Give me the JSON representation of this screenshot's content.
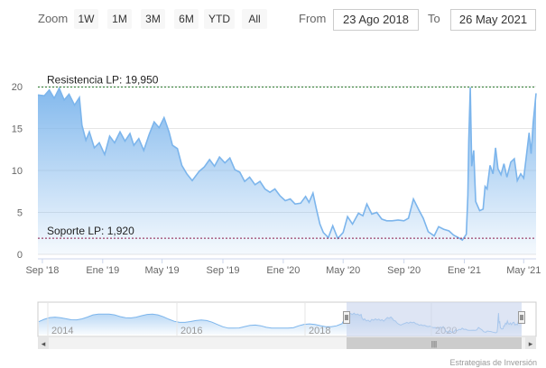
{
  "toolbar": {
    "zoom_label": "Zoom",
    "buttons": [
      "1W",
      "1M",
      "3M",
      "6M",
      "YTD",
      "All"
    ],
    "from_label": "From",
    "from_value": "23 Ago 2018",
    "to_label": "To",
    "to_value": "26 May 2021"
  },
  "colors": {
    "series_line": "#7cb5ec",
    "resistance_line": "#2e7d32",
    "support_line": "#8b1a4a",
    "navigator_mask": "#c8d3ec"
  },
  "chart_data": {
    "type": "area",
    "title": "",
    "xlabel": "",
    "ylabel": "",
    "ylim": [
      0,
      20
    ],
    "yticks": [
      0,
      5,
      10,
      15,
      20
    ],
    "x_range": [
      "2018-08-23",
      "2021-05-26"
    ],
    "xticks": [
      {
        "date": "2018-09-01",
        "label": "Sep '18"
      },
      {
        "date": "2019-01-01",
        "label": "Ene '19"
      },
      {
        "date": "2019-05-01",
        "label": "May '19"
      },
      {
        "date": "2019-09-01",
        "label": "Sep '19"
      },
      {
        "date": "2020-01-01",
        "label": "Ene '20"
      },
      {
        "date": "2020-05-01",
        "label": "May '20"
      },
      {
        "date": "2020-09-01",
        "label": "Sep '20"
      },
      {
        "date": "2021-01-01",
        "label": "Ene '21"
      },
      {
        "date": "2021-05-01",
        "label": "May '21"
      }
    ],
    "series": [
      {
        "points": [
          [
            "2018-08-23",
            19.0
          ],
          [
            "2018-09-05",
            18.9
          ],
          [
            "2018-09-15",
            19.6
          ],
          [
            "2018-09-25",
            18.6
          ],
          [
            "2018-10-05",
            19.8
          ],
          [
            "2018-10-15",
            18.4
          ],
          [
            "2018-10-25",
            19.1
          ],
          [
            "2018-11-05",
            17.8
          ],
          [
            "2018-11-15",
            18.7
          ],
          [
            "2018-11-20",
            15.4
          ],
          [
            "2018-11-28",
            13.6
          ],
          [
            "2018-12-05",
            14.6
          ],
          [
            "2018-12-15",
            12.7
          ],
          [
            "2018-12-25",
            13.3
          ],
          [
            "2019-01-05",
            11.9
          ],
          [
            "2019-01-15",
            14.1
          ],
          [
            "2019-01-25",
            13.3
          ],
          [
            "2019-02-05",
            14.6
          ],
          [
            "2019-02-15",
            13.5
          ],
          [
            "2019-02-25",
            14.4
          ],
          [
            "2019-03-05",
            13.0
          ],
          [
            "2019-03-15",
            13.8
          ],
          [
            "2019-03-25",
            12.4
          ],
          [
            "2019-04-05",
            14.3
          ],
          [
            "2019-04-15",
            15.8
          ],
          [
            "2019-04-25",
            15.1
          ],
          [
            "2019-05-05",
            16.3
          ],
          [
            "2019-05-15",
            14.6
          ],
          [
            "2019-05-22",
            13.0
          ],
          [
            "2019-06-01",
            12.6
          ],
          [
            "2019-06-10",
            10.6
          ],
          [
            "2019-06-20",
            9.6
          ],
          [
            "2019-07-01",
            8.8
          ],
          [
            "2019-07-15",
            9.9
          ],
          [
            "2019-07-25",
            10.4
          ],
          [
            "2019-08-05",
            11.3
          ],
          [
            "2019-08-15",
            10.5
          ],
          [
            "2019-08-25",
            11.6
          ],
          [
            "2019-09-05",
            10.9
          ],
          [
            "2019-09-15",
            11.5
          ],
          [
            "2019-09-25",
            10.1
          ],
          [
            "2019-10-05",
            9.8
          ],
          [
            "2019-10-15",
            8.7
          ],
          [
            "2019-10-25",
            9.2
          ],
          [
            "2019-11-05",
            8.3
          ],
          [
            "2019-11-15",
            8.7
          ],
          [
            "2019-11-25",
            7.8
          ],
          [
            "2019-12-05",
            7.4
          ],
          [
            "2019-12-15",
            7.8
          ],
          [
            "2019-12-25",
            7.0
          ],
          [
            "2020-01-05",
            6.4
          ],
          [
            "2020-01-15",
            6.6
          ],
          [
            "2020-01-25",
            6.0
          ],
          [
            "2020-02-05",
            6.1
          ],
          [
            "2020-02-15",
            6.9
          ],
          [
            "2020-02-22",
            6.2
          ],
          [
            "2020-03-01",
            7.3
          ],
          [
            "2020-03-08",
            5.4
          ],
          [
            "2020-03-15",
            3.6
          ],
          [
            "2020-03-22",
            2.6
          ],
          [
            "2020-04-01",
            2.0
          ],
          [
            "2020-04-10",
            3.4
          ],
          [
            "2020-04-20",
            1.9
          ],
          [
            "2020-05-01",
            2.6
          ],
          [
            "2020-05-10",
            4.5
          ],
          [
            "2020-05-20",
            3.6
          ],
          [
            "2020-06-01",
            4.9
          ],
          [
            "2020-06-10",
            4.6
          ],
          [
            "2020-06-18",
            6.0
          ],
          [
            "2020-06-28",
            4.8
          ],
          [
            "2020-07-08",
            5.0
          ],
          [
            "2020-07-18",
            4.2
          ],
          [
            "2020-07-28",
            4.0
          ],
          [
            "2020-08-08",
            4.0
          ],
          [
            "2020-08-20",
            4.1
          ],
          [
            "2020-09-01",
            4.0
          ],
          [
            "2020-09-10",
            4.3
          ],
          [
            "2020-09-20",
            6.6
          ],
          [
            "2020-10-01",
            5.3
          ],
          [
            "2020-10-10",
            4.3
          ],
          [
            "2020-10-20",
            2.7
          ],
          [
            "2020-11-01",
            2.2
          ],
          [
            "2020-11-10",
            3.3
          ],
          [
            "2020-11-20",
            3.0
          ],
          [
            "2020-12-01",
            2.8
          ],
          [
            "2020-12-10",
            2.3
          ],
          [
            "2020-12-20",
            2.0
          ],
          [
            "2020-12-28",
            1.7
          ],
          [
            "2021-01-05",
            2.4
          ],
          [
            "2021-01-08",
            7.0
          ],
          [
            "2021-01-10",
            13.5
          ],
          [
            "2021-01-13",
            19.9
          ],
          [
            "2021-01-16",
            10.5
          ],
          [
            "2021-01-20",
            12.4
          ],
          [
            "2021-01-24",
            6.3
          ],
          [
            "2021-02-01",
            5.2
          ],
          [
            "2021-02-08",
            5.4
          ],
          [
            "2021-02-12",
            8.1
          ],
          [
            "2021-02-16",
            7.8
          ],
          [
            "2021-02-22",
            10.6
          ],
          [
            "2021-02-28",
            9.6
          ],
          [
            "2021-03-05",
            12.7
          ],
          [
            "2021-03-10",
            10.2
          ],
          [
            "2021-03-16",
            9.5
          ],
          [
            "2021-03-22",
            10.8
          ],
          [
            "2021-03-28",
            9.2
          ],
          [
            "2021-04-05",
            11.0
          ],
          [
            "2021-04-12",
            11.4
          ],
          [
            "2021-04-18",
            8.8
          ],
          [
            "2021-04-25",
            9.6
          ],
          [
            "2021-05-01",
            9.1
          ],
          [
            "2021-05-06",
            11.5
          ],
          [
            "2021-05-12",
            14.5
          ],
          [
            "2021-05-16",
            12.0
          ],
          [
            "2021-05-20",
            15.6
          ],
          [
            "2021-05-26",
            19.2
          ]
        ]
      }
    ],
    "plot_lines": [
      {
        "value": 19.95,
        "label": "Resistencia LP: 19,950"
      },
      {
        "value": 1.92,
        "label": "Soporte LP: 1,920"
      }
    ]
  },
  "navigator": {
    "year_labels": [
      "2014",
      "2016",
      "2018",
      "2020"
    ],
    "scroll_left": "◂",
    "scroll_right": "▸",
    "grip": "|||"
  },
  "credits": "Estrategias de Inversión"
}
